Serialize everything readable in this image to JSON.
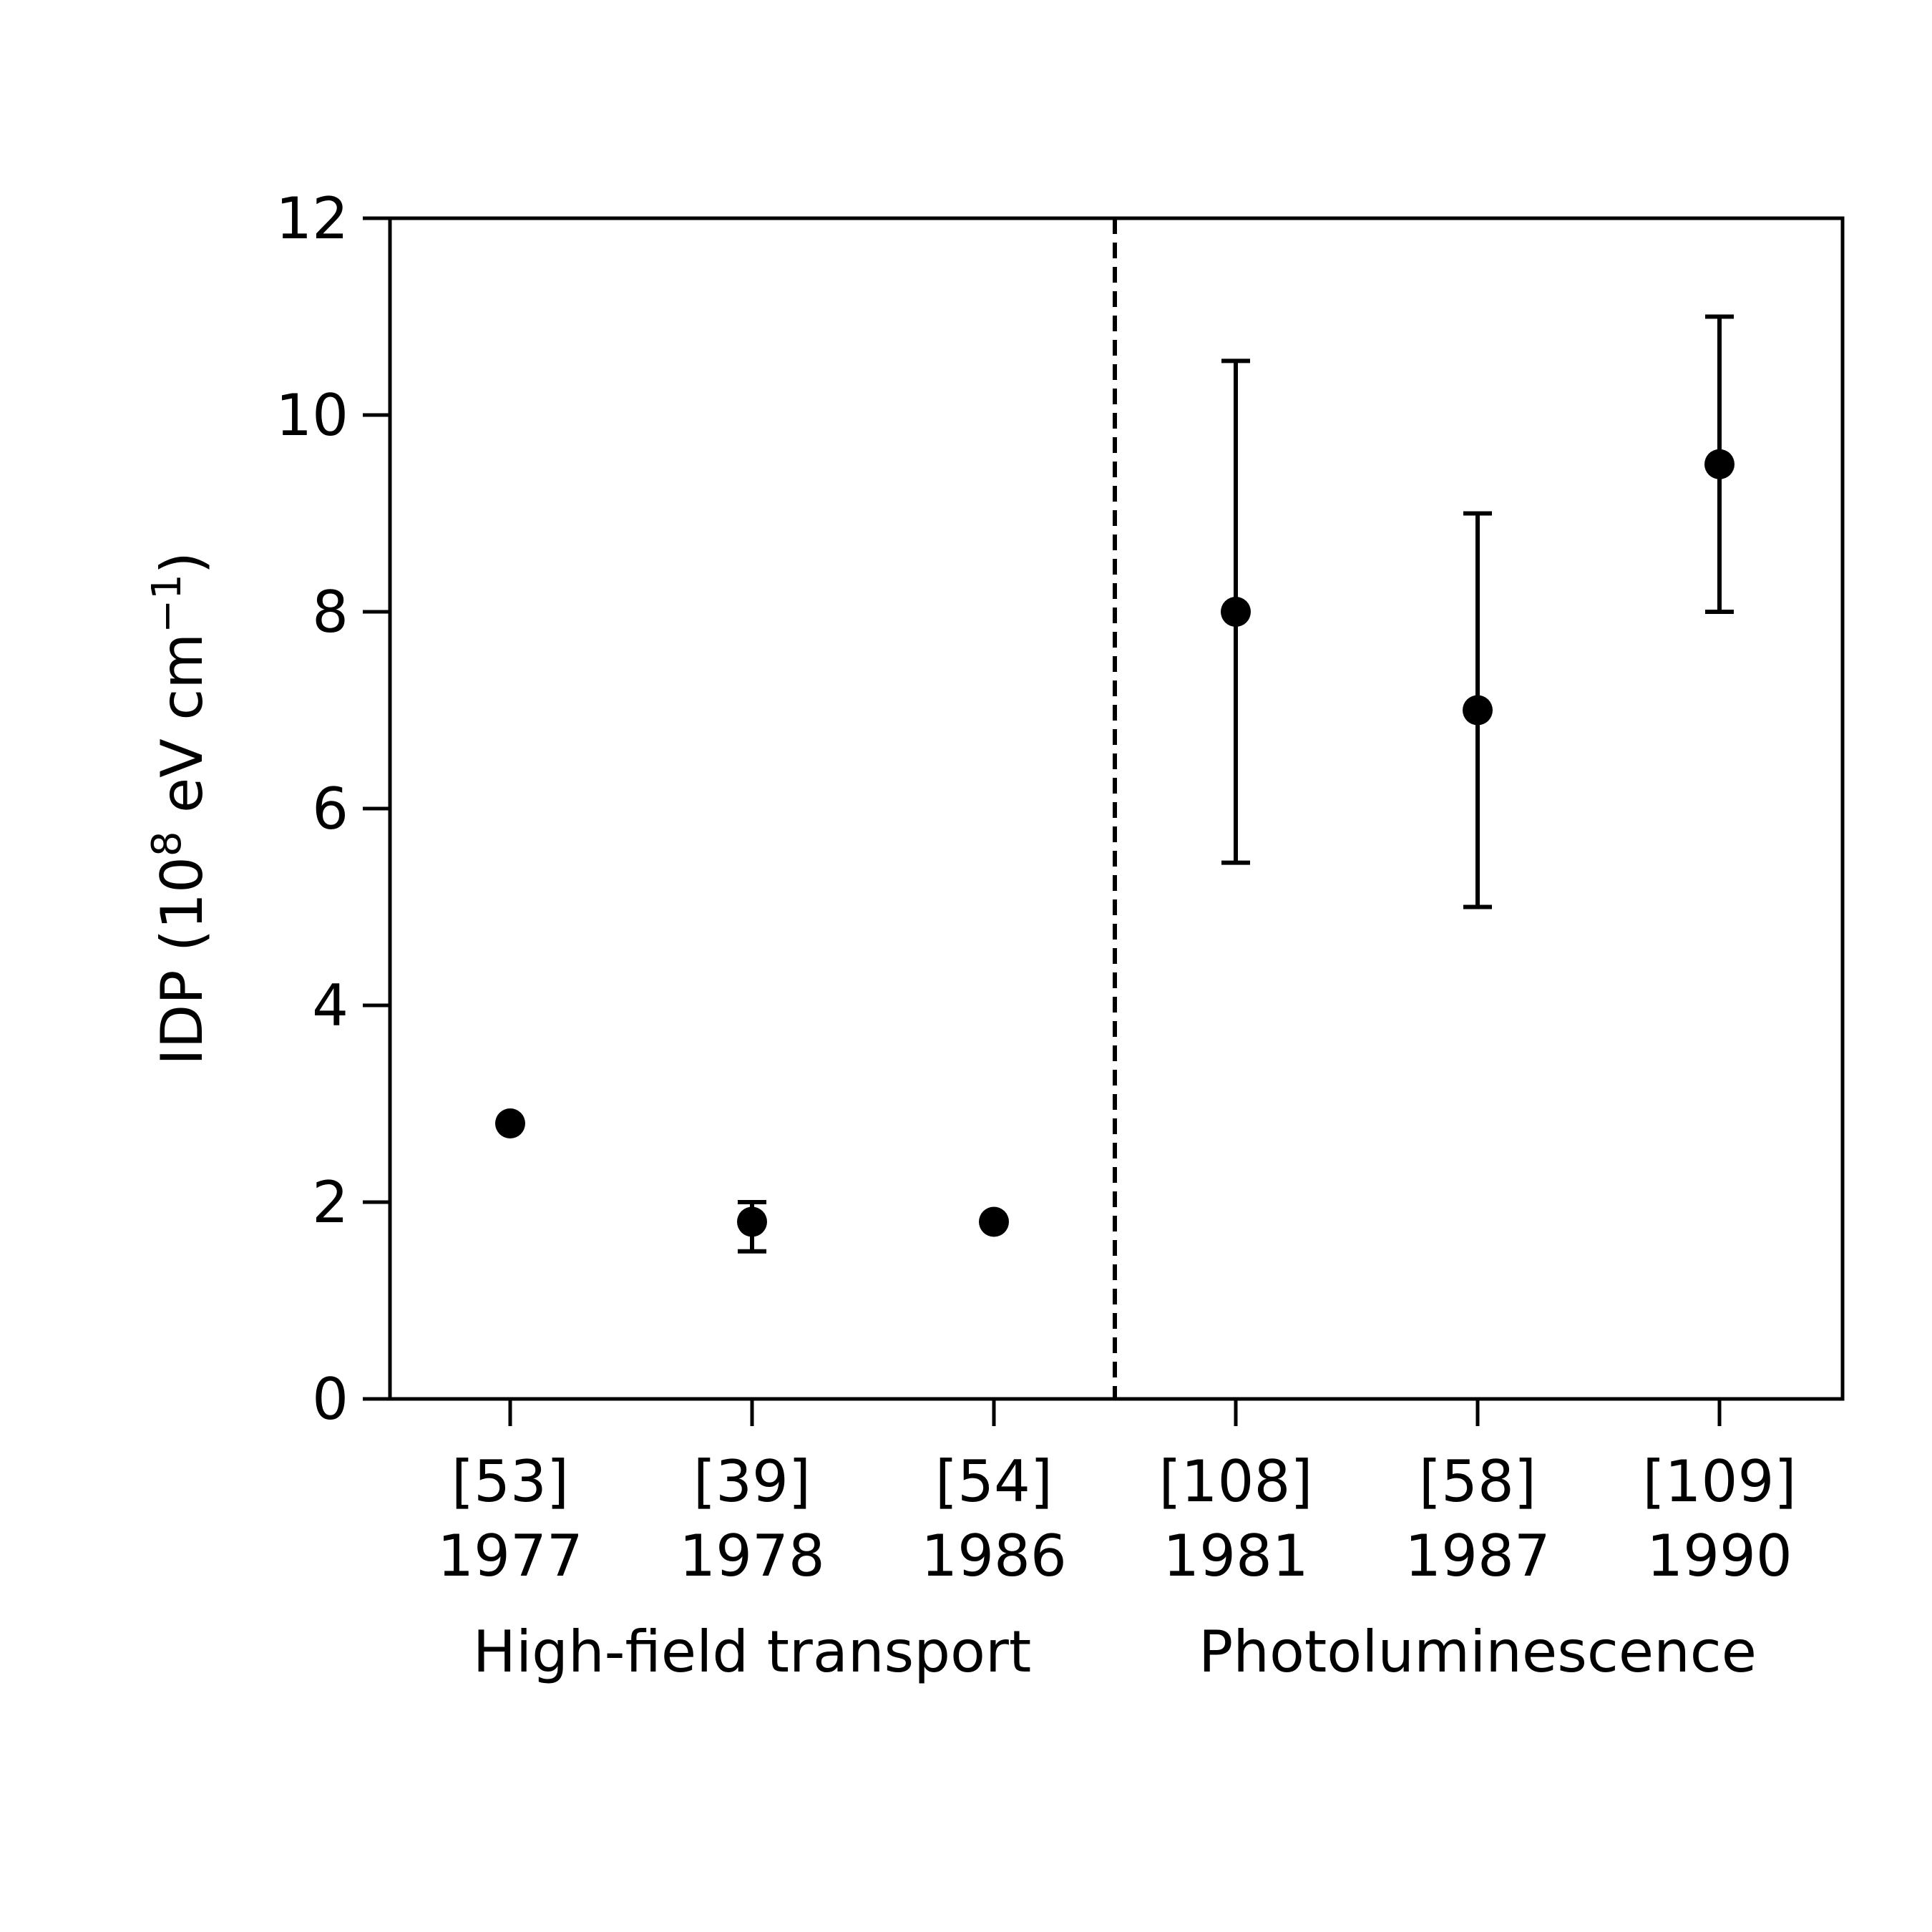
{
  "chart_data": {
    "type": "scatter",
    "ylabel": {
      "prefix": "IDP (10",
      "exp1": "8",
      "mid": " eV cm",
      "exp2": "−1",
      "suffix": ")"
    },
    "ylim": [
      0,
      12
    ],
    "yticks": [
      "0",
      "2",
      "4",
      "6",
      "8",
      "10",
      "12"
    ],
    "categories": [
      {
        "ref": "[53]",
        "year": "1977"
      },
      {
        "ref": "[39]",
        "year": "1978"
      },
      {
        "ref": "[54]",
        "year": "1986"
      },
      {
        "ref": "[108]",
        "year": "1981"
      },
      {
        "ref": "[58]",
        "year": "1987"
      },
      {
        "ref": "[109]",
        "year": "1990"
      }
    ],
    "groups": [
      {
        "label": "High-field transport",
        "categories": [
          0,
          1,
          2
        ]
      },
      {
        "label": "Photoluminescence",
        "categories": [
          3,
          4,
          5
        ]
      }
    ],
    "points": [
      {
        "category": 0,
        "value": 2.8,
        "err_low": null,
        "err_high": null
      },
      {
        "category": 1,
        "value": 1.8,
        "err_low": 1.5,
        "err_high": 2.0
      },
      {
        "category": 2,
        "value": 1.8,
        "err_low": null,
        "err_high": null
      },
      {
        "category": 3,
        "value": 8.0,
        "err_low": 5.45,
        "err_high": 10.55
      },
      {
        "category": 4,
        "value": 7.0,
        "err_low": 5.0,
        "err_high": 9.0
      },
      {
        "category": 5,
        "value": 9.5,
        "err_low": 8.0,
        "err_high": 11.0
      }
    ],
    "separator_between": [
      2,
      3
    ],
    "grid": false,
    "colors": {
      "marker": "#000000",
      "axis": "#000000"
    }
  }
}
